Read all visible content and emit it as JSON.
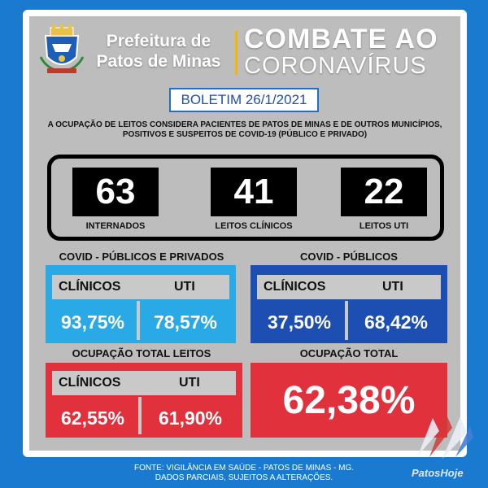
{
  "header": {
    "prefeitura_line1": "Prefeitura de",
    "prefeitura_line2": "Patos de Minas",
    "combate": "COMBATE AO",
    "coronavirus": "CORONAVÍRUS"
  },
  "boletim": "BOLETIM 26/1/2021",
  "note": "A OCUPAÇÃO DE LEITOS CONSIDERA PACIENTES DE PATOS DE MINAS E DE OUTROS MUNICÍPIOS, POSITIVOS E SUSPEITOS DE COVID-19 (PÚBLICO E PRIVADO)",
  "stats": [
    {
      "value": "63",
      "label": "INTERNADOS"
    },
    {
      "value": "41",
      "label": "LEITOS CLÍNICOS"
    },
    {
      "value": "22",
      "label": "LEITOS UTI"
    }
  ],
  "publicos_privados": {
    "title": "COVID - PÚBLICOS E PRIVADOS",
    "clinicos_label": "CLÍNICOS",
    "uti_label": "UTI",
    "clinicos_value": "93,75%",
    "uti_value": "78,57%"
  },
  "publicos": {
    "title": "COVID - PÚBLICOS",
    "clinicos_label": "CLÍNICOS",
    "uti_label": "UTI",
    "clinicos_value": "37,50%",
    "uti_value": "68,42%"
  },
  "ocupacao_leitos": {
    "title": "OCUPAÇÃO TOTAL LEITOS",
    "clinicos_label": "CLÍNICOS",
    "uti_label": "UTI",
    "clinicos_value": "62,55%",
    "uti_value": "61,90%"
  },
  "ocupacao_total": {
    "title": "OCUPAÇÃO TOTAL",
    "value": "62,38%"
  },
  "footer": {
    "line1": "FONTE: VIGILÂNCIA EM SAÚDE - PATOS DE MINAS - MG.",
    "line2": "DADOS PARCIAIS, SUJEITOS A ALTERAÇÕES."
  },
  "brand": "PatosHoje",
  "colors": {
    "background": "#1a7ad0",
    "light_blue": "#29a9e6",
    "dark_blue": "#1d4fb3",
    "red": "#e0313c",
    "accent_yellow": "#f2b705"
  }
}
